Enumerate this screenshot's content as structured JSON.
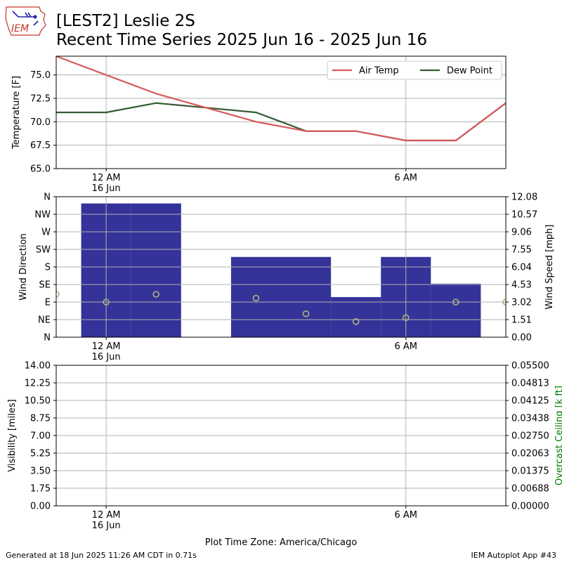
{
  "header": {
    "title_line1": "[LEST2] Leslie 2S",
    "title_line2": "Recent Time Series 2025 Jun 16 - 2025 Jun 16",
    "logo_text": "IEM"
  },
  "footer": {
    "left": "Generated at 18 Jun 2025 11:26 AM CDT in 0.71s",
    "right": "IEM Autoplot App #43"
  },
  "colors": {
    "air_temp": "#d9595c",
    "dew_point": "#335a30",
    "wind_bar": "#333399",
    "wind_dir_marker": "#b2b27f",
    "ceiling_label": "#008000",
    "grid": "#b0b0b0"
  },
  "chart_data": [
    {
      "id": "temperature",
      "type": "line",
      "ylabel": "Temperature [F]",
      "ylim": [
        65.0,
        77.0
      ],
      "yticks": [
        65.0,
        67.5,
        70.0,
        72.5,
        75.0
      ],
      "ytick_labels": [
        "65.0",
        "67.5",
        "70.0",
        "72.5",
        "75.0"
      ],
      "xlim_hours": [
        -1,
        8
      ],
      "xticks": [
        {
          "hour": 0,
          "label": "12 AM\n16 Jun"
        },
        {
          "hour": 6,
          "label": "6 AM"
        }
      ],
      "grid": true,
      "legend": {
        "placement": "top-right",
        "columns": 2
      },
      "series": [
        {
          "name": "Air Temp",
          "color_key": "air_temp",
          "x": [
            -1,
            0,
            1,
            2,
            3,
            4,
            5,
            6,
            7,
            8
          ],
          "values": [
            77,
            75,
            73,
            71.5,
            70,
            69,
            69,
            68,
            68,
            72
          ]
        },
        {
          "name": "Dew Point",
          "color_key": "dew_point",
          "x": [
            -1,
            0,
            1,
            2,
            3,
            4,
            5,
            6,
            7,
            8
          ],
          "values": [
            71,
            71,
            72,
            71.5,
            71,
            69,
            69,
            68,
            68,
            72
          ]
        }
      ]
    },
    {
      "id": "wind",
      "type": "bar",
      "ylabel_left": "Wind Direction",
      "ylabel_right": "Wind Speed [mph]",
      "direction_ticks": [
        "N",
        "NE",
        "E",
        "SE",
        "S",
        "SW",
        "W",
        "NW",
        "N"
      ],
      "direction_values": [
        0,
        45,
        90,
        135,
        180,
        225,
        270,
        315,
        360
      ],
      "speed_ylim": [
        0,
        12.08
      ],
      "speed_ticks": [
        "0.00",
        "1.51",
        "3.02",
        "4.53",
        "6.04",
        "7.55",
        "9.06",
        "10.57",
        "12.08"
      ],
      "xlim_hours": [
        -1,
        8
      ],
      "xticks": [
        {
          "hour": 0,
          "label": "12 AM\n16 Jun"
        },
        {
          "hour": 6,
          "label": "6 AM"
        }
      ],
      "grid": true,
      "wind_speed_bars": [
        {
          "start": -0.5,
          "end": 0.5,
          "speed": 11.5
        },
        {
          "start": 0.5,
          "end": 1.5,
          "speed": 11.5
        },
        {
          "start": 2.5,
          "end": 3.5,
          "speed": 6.9
        },
        {
          "start": 3.5,
          "end": 4.5,
          "speed": 6.9
        },
        {
          "start": 4.5,
          "end": 5.5,
          "speed": 3.45
        },
        {
          "start": 5.5,
          "end": 6.5,
          "speed": 6.9
        },
        {
          "start": 6.5,
          "end": 7.5,
          "speed": 4.6
        }
      ],
      "wind_direction_points": {
        "x": [
          -1,
          0,
          1,
          3,
          4,
          5,
          6,
          7,
          8
        ],
        "values": [
          110,
          90,
          110,
          100,
          60,
          40,
          50,
          90,
          90
        ]
      }
    },
    {
      "id": "visibility",
      "type": "line",
      "ylabel_left": "Visibility [miles]",
      "ylabel_right": "Overcast Ceiling [k ft]",
      "ylim_left": [
        0,
        14
      ],
      "ylim_right": [
        0,
        0.055
      ],
      "left_ticks": [
        "0.00",
        "1.75",
        "3.50",
        "5.25",
        "7.00",
        "8.75",
        "10.50",
        "12.25",
        "14.00"
      ],
      "right_ticks": [
        "0.00000",
        "0.00688",
        "0.01375",
        "0.02063",
        "0.02750",
        "0.03438",
        "0.04125",
        "0.04813",
        "0.05500"
      ],
      "xlim_hours": [
        -1,
        8
      ],
      "xticks": [
        {
          "hour": 0,
          "label": "12 AM\n16 Jun"
        },
        {
          "hour": 6,
          "label": "6 AM"
        }
      ],
      "xlabel": "Plot Time Zone: America/Chicago",
      "grid": true,
      "series": []
    }
  ]
}
